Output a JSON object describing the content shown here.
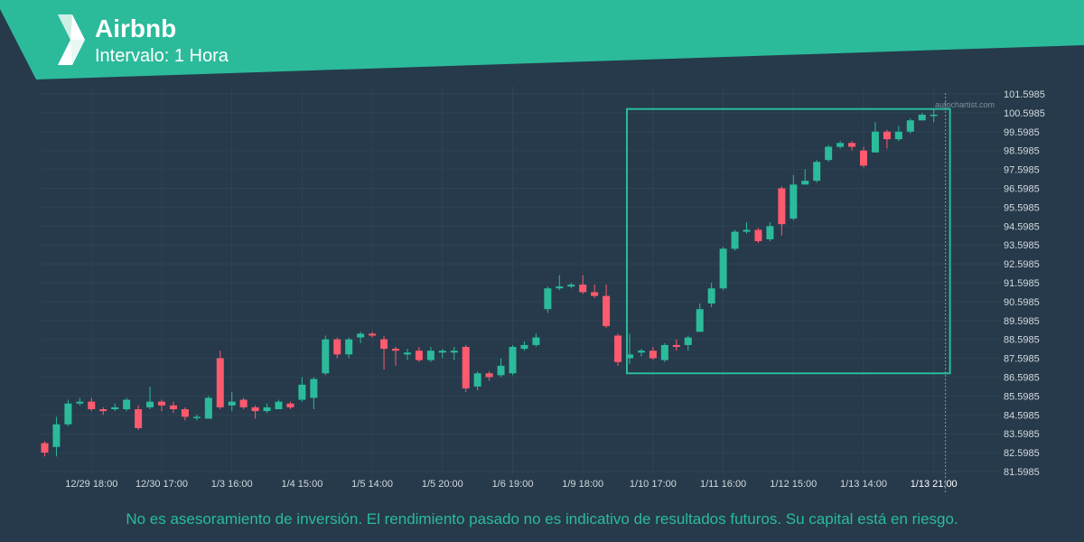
{
  "header": {
    "title": "Airbnb",
    "subtitle": "Intervalo: 1 Hora"
  },
  "watermark": "autochartist.com",
  "footer": {
    "disclaimer": "No es asesoramiento de inversión. El rendimiento pasado no es indicativo de resultados futuros. Su capital está en riesgo."
  },
  "colors": {
    "background": "#263a4b",
    "brand": "#2bbb9b",
    "up": "#2bbb9b",
    "down": "#ff5a6e",
    "grid": "#2e4354",
    "text": "#d3d9de"
  },
  "chart_data": {
    "type": "candlestick",
    "ylim": [
      81.5985,
      101.5985
    ],
    "y_ticks": [
      "101.5985",
      "100.5985",
      "99.5985",
      "98.5985",
      "97.5985",
      "96.5985",
      "95.5985",
      "94.5985",
      "93.5985",
      "92.5985",
      "91.5985",
      "90.5985",
      "89.5985",
      "88.5985",
      "87.5985",
      "86.5985",
      "85.5985",
      "84.5985",
      "83.5985",
      "82.5985",
      "81.5985"
    ],
    "x_ticks": [
      {
        "label": "12/29 18:00",
        "index": 4
      },
      {
        "label": "12/30 17:00",
        "index": 10
      },
      {
        "label": "1/3 16:00",
        "index": 16
      },
      {
        "label": "1/4 15:00",
        "index": 22
      },
      {
        "label": "1/5 14:00",
        "index": 28
      },
      {
        "label": "1/5 20:00",
        "index": 34
      },
      {
        "label": "1/6 19:00",
        "index": 40
      },
      {
        "label": "1/9 18:00",
        "index": 46
      },
      {
        "label": "1/10 17:00",
        "index": 52
      },
      {
        "label": "1/11 16:00",
        "index": 58
      },
      {
        "label": "1/12 15:00",
        "index": 64
      },
      {
        "label": "1/13 14:00",
        "index": 70
      },
      {
        "label": "1/13 21:00",
        "index": 76,
        "highlight": true
      }
    ],
    "candles": [
      [
        83.1,
        82.6,
        83.2,
        82.4
      ],
      [
        82.9,
        84.1,
        84.5,
        82.4
      ],
      [
        84.1,
        85.2,
        85.4,
        84.0
      ],
      [
        85.2,
        85.3,
        85.5,
        85.1
      ],
      [
        85.3,
        84.9,
        85.5,
        84.8
      ],
      [
        84.9,
        84.8,
        85.0,
        84.6
      ],
      [
        84.9,
        85.0,
        85.2,
        84.8
      ],
      [
        84.9,
        85.4,
        85.5,
        84.8
      ],
      [
        84.9,
        83.9,
        85.1,
        83.8
      ],
      [
        85.0,
        85.3,
        86.1,
        84.9
      ],
      [
        85.3,
        85.1,
        85.4,
        84.8
      ],
      [
        85.1,
        84.9,
        85.3,
        84.7
      ],
      [
        84.9,
        84.5,
        85.0,
        84.3
      ],
      [
        84.5,
        84.5,
        84.6,
        84.3
      ],
      [
        84.4,
        85.5,
        85.6,
        84.4
      ],
      [
        87.6,
        85.0,
        88.0,
        84.9
      ],
      [
        85.1,
        85.3,
        85.8,
        84.8
      ],
      [
        85.4,
        85.0,
        85.5,
        84.9
      ],
      [
        85.0,
        84.8,
        85.1,
        84.4
      ],
      [
        84.8,
        85.0,
        85.2,
        84.7
      ],
      [
        84.9,
        85.3,
        85.4,
        84.9
      ],
      [
        85.2,
        85.0,
        85.3,
        84.9
      ],
      [
        85.4,
        86.2,
        86.6,
        85.3
      ],
      [
        85.5,
        86.5,
        86.6,
        84.9
      ],
      [
        86.8,
        88.6,
        88.8,
        86.7
      ],
      [
        88.6,
        87.8,
        88.7,
        87.6
      ],
      [
        87.8,
        88.6,
        88.7,
        87.6
      ],
      [
        88.7,
        88.9,
        89.0,
        88.4
      ],
      [
        88.9,
        88.8,
        89.0,
        88.7
      ],
      [
        88.6,
        88.1,
        88.8,
        87.0
      ],
      [
        88.1,
        88.0,
        88.2,
        87.2
      ],
      [
        87.8,
        87.9,
        88.1,
        87.5
      ],
      [
        88.0,
        87.5,
        88.2,
        87.4
      ],
      [
        87.5,
        88.0,
        88.2,
        87.4
      ],
      [
        87.9,
        88.0,
        88.1,
        87.6
      ],
      [
        87.9,
        88.0,
        88.2,
        87.5
      ],
      [
        88.2,
        86.0,
        88.3,
        85.8
      ],
      [
        86.1,
        86.8,
        86.9,
        85.9
      ],
      [
        86.8,
        86.6,
        86.9,
        86.4
      ],
      [
        86.7,
        87.2,
        87.6,
        86.6
      ],
      [
        86.8,
        88.2,
        88.3,
        86.7
      ],
      [
        88.1,
        88.3,
        88.5,
        88.0
      ],
      [
        88.3,
        88.7,
        88.9,
        88.2
      ],
      [
        90.2,
        91.3,
        91.4,
        90.0
      ],
      [
        91.3,
        91.4,
        92.0,
        91.2
      ],
      [
        91.4,
        91.5,
        91.6,
        91.3
      ],
      [
        91.5,
        91.1,
        92.0,
        91.0
      ],
      [
        91.1,
        90.9,
        91.5,
        90.8
      ],
      [
        90.9,
        89.3,
        91.5,
        89.2
      ],
      [
        88.8,
        87.4,
        88.9,
        87.2
      ],
      [
        87.6,
        87.8,
        88.9,
        87.3
      ],
      [
        87.9,
        88.0,
        88.1,
        87.7
      ],
      [
        88.0,
        87.6,
        88.2,
        87.5
      ],
      [
        87.5,
        88.3,
        88.4,
        87.4
      ],
      [
        88.3,
        88.2,
        88.6,
        88.0
      ],
      [
        88.3,
        88.7,
        88.8,
        88.0
      ],
      [
        89.0,
        90.2,
        90.5,
        89.0
      ],
      [
        90.5,
        91.3,
        91.6,
        90.3
      ],
      [
        91.3,
        93.4,
        93.5,
        91.2
      ],
      [
        93.4,
        94.3,
        94.4,
        93.3
      ],
      [
        94.3,
        94.4,
        94.8,
        94.2
      ],
      [
        94.4,
        93.8,
        94.5,
        93.7
      ],
      [
        93.9,
        94.6,
        94.8,
        93.8
      ],
      [
        96.6,
        94.7,
        96.7,
        94.1
      ],
      [
        95.0,
        96.8,
        97.3,
        94.9
      ],
      [
        96.8,
        97.0,
        97.6,
        96.8
      ],
      [
        97.0,
        98.0,
        98.1,
        96.9
      ],
      [
        98.1,
        98.8,
        98.9,
        98.0
      ],
      [
        98.8,
        99.0,
        99.1,
        98.7
      ],
      [
        99.0,
        98.8,
        99.1,
        98.6
      ],
      [
        98.6,
        97.8,
        98.8,
        97.7
      ],
      [
        98.5,
        99.6,
        100.1,
        98.5
      ],
      [
        99.6,
        99.2,
        99.7,
        98.7
      ],
      [
        99.2,
        99.6,
        99.9,
        99.1
      ],
      [
        99.6,
        100.2,
        100.3,
        99.5
      ],
      [
        100.2,
        100.5,
        100.6,
        100.2
      ],
      [
        100.5,
        100.5,
        100.8,
        100.1
      ]
    ],
    "pattern_box": {
      "start_index": 50,
      "end_index": 77,
      "y_low": 86.8,
      "y_high": 100.8
    },
    "current_marker_index": 77
  }
}
